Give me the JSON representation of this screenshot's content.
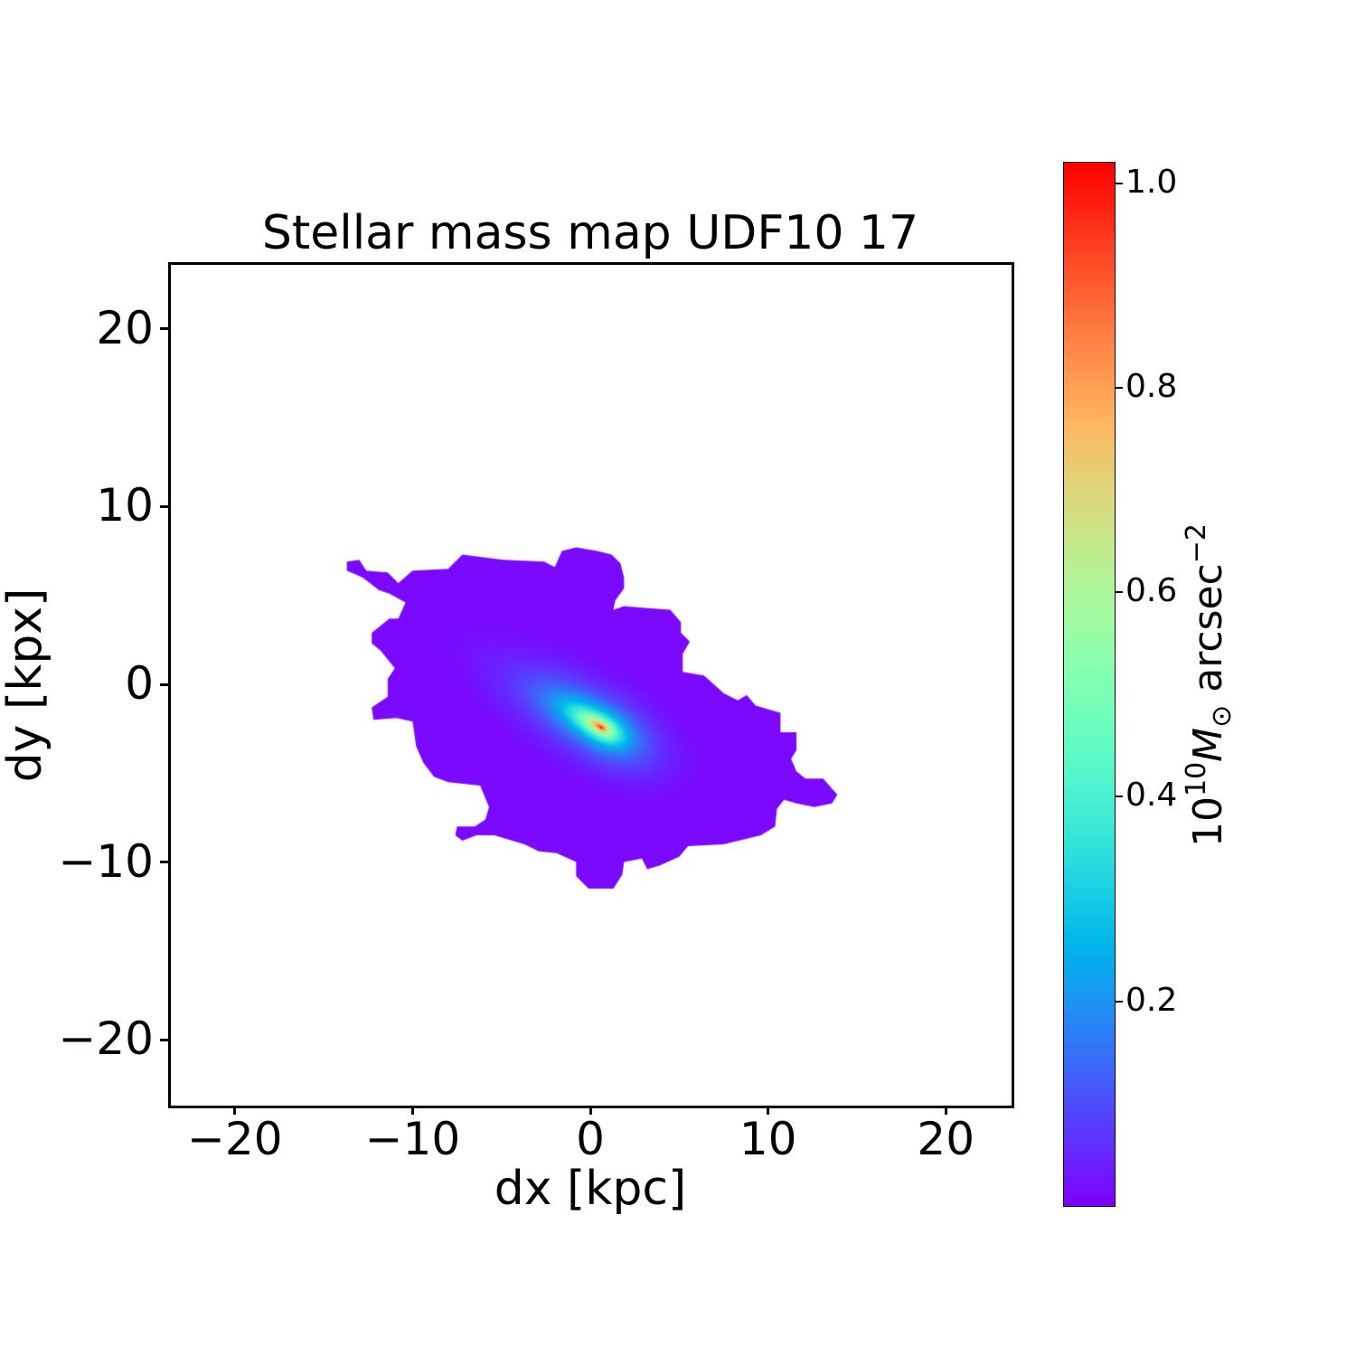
{
  "chart_data": {
    "type": "heatmap",
    "title": "Stellar mass map UDF10 17",
    "xlabel": "dx [kpc]",
    "ylabel": "dy [kpx]",
    "xlim": [
      -23.65,
      23.65
    ],
    "ylim": [
      -23.65,
      23.65
    ],
    "xticks": [
      -20,
      -10,
      0,
      10,
      20
    ],
    "xtick_labels": [
      "−20",
      "−10",
      "0",
      "10",
      "20"
    ],
    "yticks": [
      20,
      10,
      0,
      -10,
      -20
    ],
    "ytick_labels": [
      "20",
      "10",
      "0",
      "−10",
      "−20"
    ],
    "grid": false,
    "colormap": "rainbow",
    "colorbar": {
      "range": [
        0,
        1.02
      ],
      "ticks": [
        1.0,
        0.8,
        0.6,
        0.4,
        0.2
      ],
      "tick_labels": [
        "1.0",
        "0.8",
        "0.6",
        "0.4",
        "0.2"
      ],
      "label": {
        "base": "10",
        "exp": "10",
        "sym": "M",
        "sub": "⊙",
        "unit": "arcsec",
        "unit_exp": "−2"
      },
      "position": "right"
    },
    "peak_value": 1.02,
    "peak_position_kpc": [
      0.6,
      -2.4
    ],
    "background_value": 0.01,
    "source_outline_kpc": [
      [
        -13.7,
        6.9
      ],
      [
        -13.0,
        7.0
      ],
      [
        -12.6,
        6.4
      ],
      [
        -11.4,
        6.3
      ],
      [
        -10.8,
        5.7
      ],
      [
        -10.0,
        6.4
      ],
      [
        -8.0,
        6.5
      ],
      [
        -7.2,
        7.3
      ],
      [
        -4.9,
        7.0
      ],
      [
        -2.6,
        6.9
      ],
      [
        -2.0,
        6.6
      ],
      [
        -1.6,
        7.5
      ],
      [
        -0.8,
        7.7
      ],
      [
        0.4,
        7.5
      ],
      [
        1.2,
        7.3
      ],
      [
        1.7,
        6.8
      ],
      [
        1.9,
        6.0
      ],
      [
        1.9,
        5.4
      ],
      [
        1.4,
        4.7
      ],
      [
        1.3,
        4.2
      ],
      [
        1.9,
        4.4
      ],
      [
        3.1,
        4.3
      ],
      [
        4.5,
        4.2
      ],
      [
        5.1,
        3.5
      ],
      [
        5.1,
        2.9
      ],
      [
        5.6,
        2.4
      ],
      [
        5.2,
        1.7
      ],
      [
        5.2,
        0.7
      ],
      [
        6.4,
        0.5
      ],
      [
        7.5,
        -0.5
      ],
      [
        8.3,
        -0.9
      ],
      [
        8.8,
        -0.6
      ],
      [
        9.3,
        -1.2
      ],
      [
        10.7,
        -1.6
      ],
      [
        10.7,
        -2.7
      ],
      [
        11.6,
        -2.7
      ],
      [
        11.6,
        -3.7
      ],
      [
        11.3,
        -4.2
      ],
      [
        11.6,
        -4.9
      ],
      [
        12.1,
        -5.3
      ],
      [
        13.1,
        -5.3
      ],
      [
        13.9,
        -6.2
      ],
      [
        13.6,
        -6.7
      ],
      [
        12.6,
        -6.9
      ],
      [
        11.6,
        -6.7
      ],
      [
        10.9,
        -6.5
      ],
      [
        10.5,
        -7.0
      ],
      [
        10.4,
        -8.0
      ],
      [
        9.6,
        -8.5
      ],
      [
        7.5,
        -9.0
      ],
      [
        5.5,
        -9.1
      ],
      [
        5.0,
        -9.7
      ],
      [
        3.9,
        -10.2
      ],
      [
        3.2,
        -10.4
      ],
      [
        2.9,
        -9.8
      ],
      [
        1.9,
        -10.0
      ],
      [
        1.8,
        -10.7
      ],
      [
        1.3,
        -11.5
      ],
      [
        -0.1,
        -11.5
      ],
      [
        -0.8,
        -10.8
      ],
      [
        -0.8,
        -10.0
      ],
      [
        -1.9,
        -9.5
      ],
      [
        -2.9,
        -9.4
      ],
      [
        -3.7,
        -9.0
      ],
      [
        -5.4,
        -8.5
      ],
      [
        -6.4,
        -8.5
      ],
      [
        -7.2,
        -8.8
      ],
      [
        -7.6,
        -8.5
      ],
      [
        -7.5,
        -8.0
      ],
      [
        -6.5,
        -8.0
      ],
      [
        -5.9,
        -7.6
      ],
      [
        -5.7,
        -6.9
      ],
      [
        -6.2,
        -5.7
      ],
      [
        -8.0,
        -5.5
      ],
      [
        -8.8,
        -5.2
      ],
      [
        -9.4,
        -4.4
      ],
      [
        -9.8,
        -3.5
      ],
      [
        -10.0,
        -2.1
      ],
      [
        -10.9,
        -1.9
      ],
      [
        -12.2,
        -2.0
      ],
      [
        -12.3,
        -1.3
      ],
      [
        -11.4,
        -0.7
      ],
      [
        -11.4,
        0.3
      ],
      [
        -11.0,
        0.9
      ],
      [
        -11.8,
        1.9
      ],
      [
        -12.3,
        2.3
      ],
      [
        -12.3,
        2.9
      ],
      [
        -11.3,
        3.7
      ],
      [
        -10.8,
        3.7
      ],
      [
        -10.4,
        4.6
      ],
      [
        -11.3,
        5.1
      ],
      [
        -11.9,
        5.3
      ],
      [
        -12.8,
        6.0
      ],
      [
        -13.7,
        6.4
      ]
    ]
  }
}
